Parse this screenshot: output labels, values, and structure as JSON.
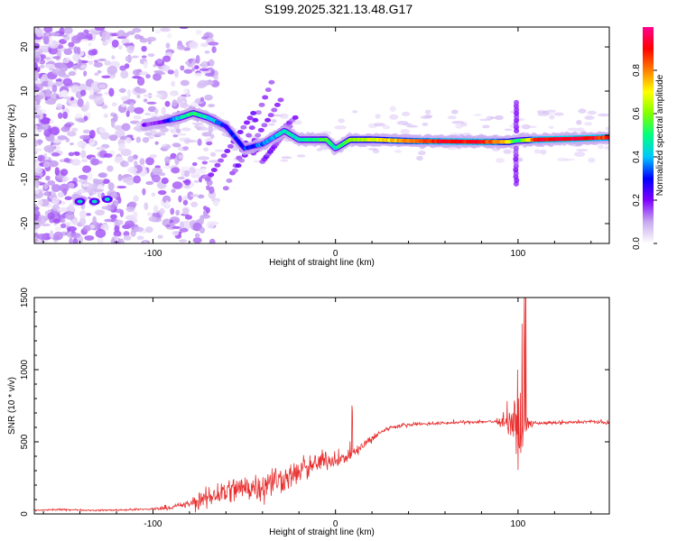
{
  "title": "S199.2025.321.13.48.G17",
  "chart_data": [
    {
      "type": "heatmap",
      "xlabel": "Height of straight line (km)",
      "ylabel": "Frequency (Hz)",
      "xlim": [
        -165,
        150
      ],
      "ylim": [
        -24.5,
        24.5
      ],
      "xticks": [
        -100,
        0,
        100
      ],
      "yticks": [
        -20,
        -10,
        0,
        10,
        20
      ],
      "colorbar": {
        "label": "Normalized spectral amplitude",
        "range": [
          0,
          1
        ],
        "ticks": [
          "0.0",
          "0.2",
          "0.4",
          "0.6",
          "0.8"
        ],
        "colors": [
          "#ffffff",
          "#c8a8f0",
          "#8000ff",
          "#0000ff",
          "#00c8ff",
          "#00ff80",
          "#80ff00",
          "#ffff00",
          "#ff8000",
          "#ff0000",
          "#ff0090"
        ]
      },
      "ridge": [
        {
          "x": -165,
          "y": -6,
          "a": 0.15
        },
        {
          "x": -140,
          "y": -15,
          "a": 0.45
        },
        {
          "x": -125,
          "y": -15,
          "a": 0.35
        },
        {
          "x": -110,
          "y": 2,
          "a": 0.15
        },
        {
          "x": -95,
          "y": 3,
          "a": 0.2
        },
        {
          "x": -85,
          "y": 4,
          "a": 0.45
        },
        {
          "x": -78,
          "y": 5,
          "a": 0.5
        },
        {
          "x": -70,
          "y": 4,
          "a": 0.45
        },
        {
          "x": -60,
          "y": 2,
          "a": 0.3
        },
        {
          "x": -50,
          "y": -3,
          "a": 0.3
        },
        {
          "x": -40,
          "y": -2,
          "a": 0.35
        },
        {
          "x": -28,
          "y": 1,
          "a": 0.45
        },
        {
          "x": -20,
          "y": -1,
          "a": 0.45
        },
        {
          "x": -12,
          "y": -1,
          "a": 0.5
        },
        {
          "x": -5,
          "y": -1,
          "a": 0.55
        },
        {
          "x": 0,
          "y": -3,
          "a": 0.45
        },
        {
          "x": 8,
          "y": -1,
          "a": 0.6
        },
        {
          "x": 20,
          "y": -1,
          "a": 0.65
        },
        {
          "x": 40,
          "y": -1.3,
          "a": 0.8
        },
        {
          "x": 60,
          "y": -1.4,
          "a": 0.9
        },
        {
          "x": 80,
          "y": -1.5,
          "a": 0.9
        },
        {
          "x": 95,
          "y": -1.5,
          "a": 0.7
        },
        {
          "x": 100,
          "y": -1.2,
          "a": 0.45
        },
        {
          "x": 110,
          "y": -1.0,
          "a": 0.9
        },
        {
          "x": 130,
          "y": -0.8,
          "a": 0.95
        },
        {
          "x": 150,
          "y": -0.5,
          "a": 0.85
        }
      ]
    },
    {
      "type": "line",
      "xlabel": "Height of straight line (km)",
      "ylabel": "SNR (10 * v/v)",
      "xlim": [
        -165,
        150
      ],
      "ylim": [
        0,
        1500
      ],
      "xticks": [
        -100,
        0,
        100
      ],
      "yticks": [
        0,
        500,
        1000,
        1500
      ],
      "color": "#e83030",
      "series": [
        {
          "x": [
            -165,
            -150,
            -130,
            -110,
            -100,
            -90,
            -80,
            -75,
            -70,
            -65,
            -60,
            -55,
            -50,
            -45,
            -40,
            -35,
            -30,
            -25,
            -20,
            -15,
            -10,
            -5,
            0,
            5,
            10,
            15,
            20,
            25,
            30,
            35,
            40,
            50,
            60,
            70,
            80,
            90,
            95,
            100,
            103,
            105,
            110,
            120,
            130,
            140,
            150
          ],
          "values": [
            25,
            30,
            25,
            30,
            35,
            45,
            70,
            90,
            110,
            140,
            160,
            170,
            180,
            190,
            200,
            220,
            240,
            260,
            290,
            320,
            350,
            380,
            370,
            390,
            420,
            470,
            520,
            570,
            600,
            610,
            620,
            625,
            630,
            635,
            640,
            640,
            650,
            600,
            450,
            620,
            630,
            630,
            635,
            640,
            630
          ],
          "noise": [
            8,
            8,
            8,
            10,
            12,
            20,
            40,
            70,
            110,
            140,
            140,
            140,
            140,
            150,
            150,
            150,
            140,
            130,
            130,
            120,
            110,
            100,
            60,
            60,
            60,
            50,
            35,
            25,
            20,
            15,
            15,
            15,
            15,
            15,
            15,
            25,
            140,
            350,
            500,
            60,
            15,
            15,
            15,
            15,
            15
          ]
        }
      ]
    }
  ]
}
